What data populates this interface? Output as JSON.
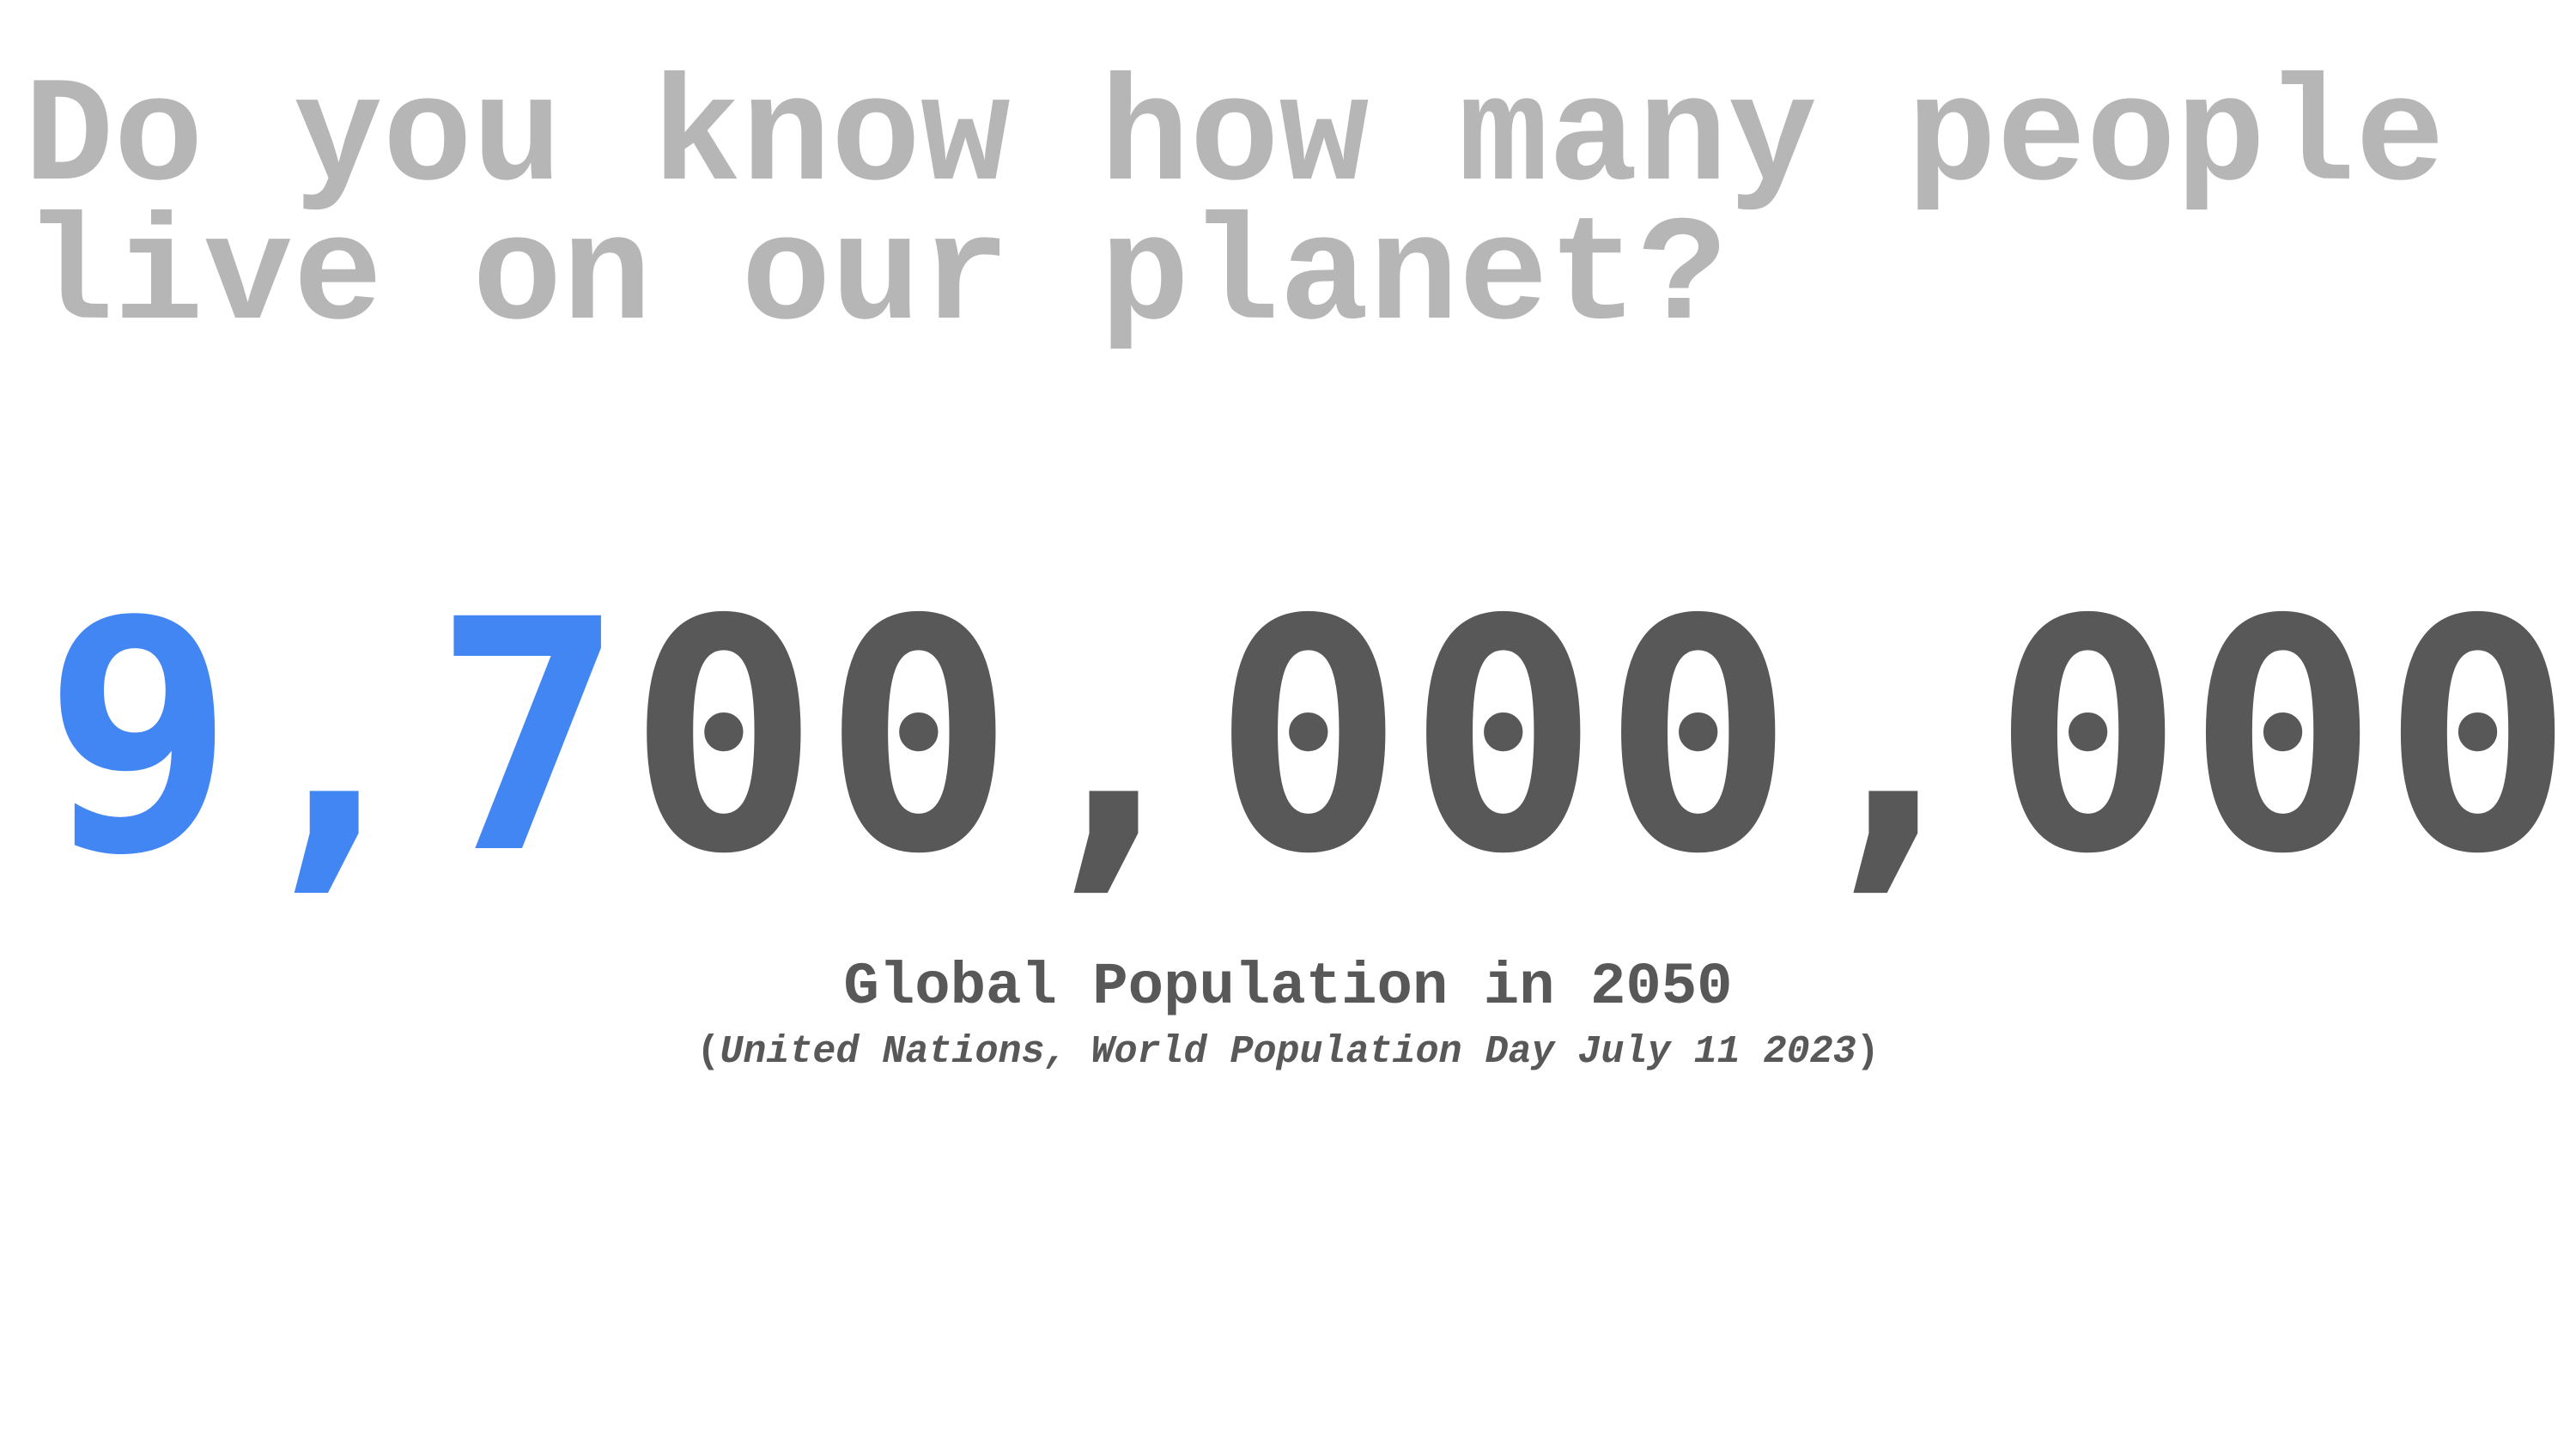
{
  "question": {
    "line1": "Do you know how many people",
    "line2": "live on our planet?"
  },
  "population": {
    "highlighted_digits": "9,7",
    "remaining_digits": "00,000,000",
    "value": 9700000000,
    "highlight_color": "#4286f4",
    "number_color": "#585858"
  },
  "caption": "Global Population in 2050",
  "source": {
    "open_paren": "(",
    "text": "United Nations, World Population Day July 11 2023",
    "close_paren": ")"
  },
  "colors": {
    "question": "#b6b6b6",
    "text": "#585858",
    "background": "#ffffff"
  }
}
